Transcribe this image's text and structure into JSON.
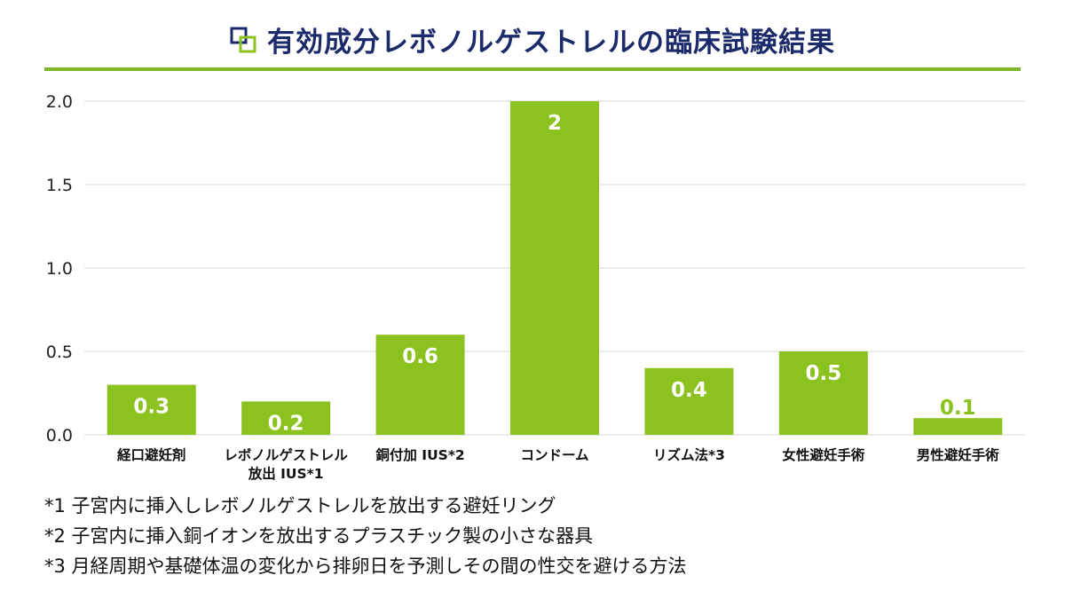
{
  "title": "有効成分レボノルゲストレルの臨床試験結果",
  "colors": {
    "accent": "#8bc220",
    "rule": "#7db928",
    "title": "#1b2a6b",
    "icon_dark": "#1b2a6b",
    "icon_light": "#8bc220"
  },
  "icons": {
    "title": "overlapping-squares-icon"
  },
  "chart_data": {
    "type": "bar",
    "categories": [
      [
        "経口避妊剤"
      ],
      [
        "レボノルゲストレル",
        "放出 IUS*1"
      ],
      [
        "銅付加 IUS*2"
      ],
      [
        "コンドーム"
      ],
      [
        "リズム法*3"
      ],
      [
        "女性避妊手術"
      ],
      [
        "男性避妊手術"
      ]
    ],
    "values": [
      0.3,
      0.2,
      0.6,
      2,
      0.4,
      0.5,
      0.1
    ],
    "data_labels": [
      "0.3",
      "0.2",
      "0.6",
      "2",
      "0.4",
      "0.5",
      "0.1"
    ],
    "yticks": [
      "0.0",
      "0.5",
      "1.0",
      "1.5",
      "2.0"
    ],
    "ylim": [
      0,
      2
    ],
    "grid": true,
    "xlabel": "",
    "ylabel": ""
  },
  "footnotes": [
    "*1 子宮内に挿入しレボノルゲストレルを放出する避妊リング",
    "*2 子宮内に挿入銅イオンを放出するプラスチック製の小さな器具",
    "*3 月経周期や基礎体温の変化から排卵日を予測しその間の性交を避ける方法"
  ]
}
